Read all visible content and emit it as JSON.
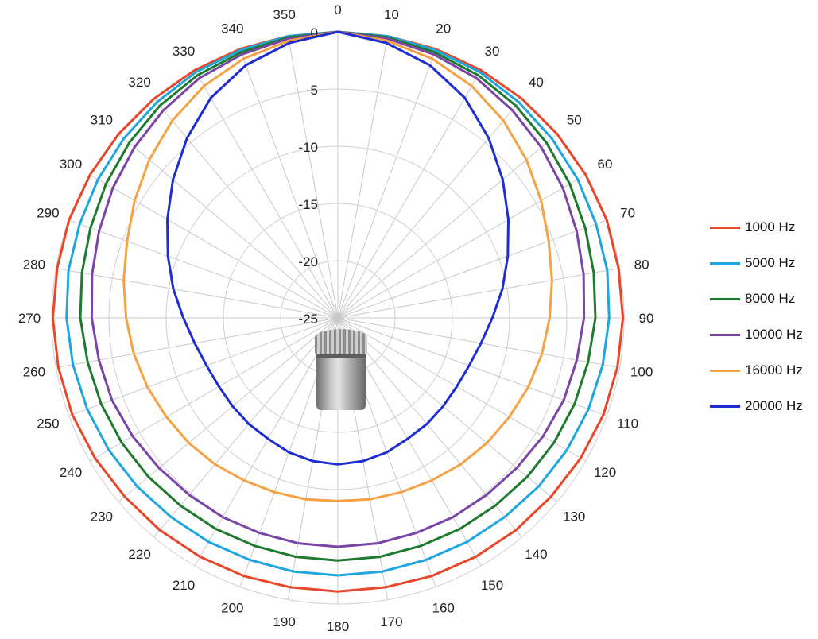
{
  "chart_data": {
    "type": "polar-line",
    "angle_ticks": [
      "0",
      "10",
      "20",
      "30",
      "40",
      "50",
      "60",
      "70",
      "80",
      "90",
      "100",
      "110",
      "120",
      "130",
      "140",
      "150",
      "160",
      "170",
      "180",
      "190",
      "200",
      "210",
      "220",
      "230",
      "240",
      "250",
      "260",
      "270",
      "280",
      "290",
      "300",
      "310",
      "320",
      "330",
      "340",
      "350"
    ],
    "radial_ticks": [
      "0",
      "-5",
      "-10",
      "-15",
      "-20",
      "-25"
    ],
    "radial_range": [
      -25,
      0
    ],
    "grid": true,
    "legend_position": "right",
    "angles": [
      0,
      10,
      20,
      30,
      40,
      50,
      60,
      70,
      80,
      90,
      100,
      110,
      120,
      130,
      140,
      150,
      160,
      170,
      180,
      190,
      200,
      210,
      220,
      230,
      240,
      250,
      260,
      270,
      280,
      290,
      300,
      310,
      320,
      330,
      340,
      350
    ],
    "series": [
      {
        "name": "1000 Hz",
        "color": "#e8472a",
        "values": [
          0,
          0,
          0,
          0,
          0,
          0,
          0,
          0,
          -0.1,
          -0.1,
          -0.2,
          -0.3,
          -0.5,
          -0.7,
          -0.8,
          -0.9,
          -1.0,
          -1.1,
          -1.1,
          -1.1,
          -1.0,
          -0.9,
          -0.8,
          -0.7,
          -0.5,
          -0.3,
          -0.2,
          -0.1,
          -0.1,
          0,
          0,
          0,
          0,
          0,
          0,
          0
        ]
      },
      {
        "name": "5000 Hz",
        "color": "#1fa6df",
        "values": [
          0,
          0,
          -0.1,
          -0.2,
          -0.4,
          -0.6,
          -0.8,
          -1.0,
          -1.1,
          -1.3,
          -1.5,
          -1.7,
          -1.9,
          -2.1,
          -2.3,
          -2.4,
          -2.5,
          -2.5,
          -2.5,
          -2.5,
          -2.5,
          -2.4,
          -2.3,
          -2.1,
          -1.9,
          -1.7,
          -1.5,
          -1.3,
          -1.1,
          -1.0,
          -0.8,
          -0.6,
          -0.4,
          -0.2,
          -0.1,
          0
        ]
      },
      {
        "name": "8000 Hz",
        "color": "#1e7a2e",
        "values": [
          0,
          -0.1,
          -0.3,
          -0.5,
          -0.8,
          -1.2,
          -1.6,
          -2.0,
          -2.3,
          -2.5,
          -2.8,
          -3.0,
          -3.2,
          -3.4,
          -3.6,
          -3.7,
          -3.8,
          -3.8,
          -3.8,
          -3.8,
          -3.8,
          -3.7,
          -3.6,
          -3.4,
          -3.2,
          -3.0,
          -2.8,
          -2.5,
          -2.3,
          -2.0,
          -1.6,
          -1.2,
          -0.8,
          -0.5,
          -0.3,
          -0.1
        ]
      },
      {
        "name": "10000 Hz",
        "color": "#7a45a6",
        "values": [
          0,
          -0.2,
          -0.5,
          -0.8,
          -1.3,
          -1.8,
          -2.3,
          -2.8,
          -3.2,
          -3.5,
          -3.8,
          -4.0,
          -4.3,
          -4.6,
          -4.8,
          -4.9,
          -5.0,
          -5.0,
          -5.0,
          -5.0,
          -5.0,
          -4.9,
          -4.8,
          -4.6,
          -4.3,
          -4.0,
          -3.8,
          -3.5,
          -3.2,
          -2.8,
          -2.3,
          -1.8,
          -1.3,
          -0.8,
          -0.5,
          -0.2
        ]
      },
      {
        "name": "16000 Hz",
        "color": "#f5a244",
        "values": [
          0,
          -0.4,
          -0.9,
          -1.6,
          -2.5,
          -3.5,
          -4.5,
          -5.4,
          -6.0,
          -6.5,
          -6.9,
          -7.3,
          -7.7,
          -8.0,
          -8.3,
          -8.6,
          -8.8,
          -8.9,
          -9.0,
          -8.9,
          -8.8,
          -8.6,
          -8.3,
          -8.0,
          -7.7,
          -7.3,
          -6.9,
          -6.5,
          -6.0,
          -5.4,
          -4.5,
          -3.5,
          -2.5,
          -1.6,
          -0.9,
          -0.4
        ]
      },
      {
        "name": "20000 Hz",
        "color": "#1f2ed1",
        "values": [
          0,
          -0.6,
          -1.5,
          -2.8,
          -4.5,
          -6.2,
          -7.8,
          -9.2,
          -10.4,
          -11.5,
          -12.3,
          -12.8,
          -13.0,
          -13.0,
          -12.9,
          -12.8,
          -12.5,
          -12.3,
          -12.2,
          -12.3,
          -12.5,
          -12.8,
          -12.9,
          -13.0,
          -13.0,
          -12.8,
          -12.3,
          -11.5,
          -10.4,
          -9.2,
          -7.8,
          -6.2,
          -4.5,
          -2.8,
          -1.5,
          -0.6
        ]
      }
    ]
  }
}
